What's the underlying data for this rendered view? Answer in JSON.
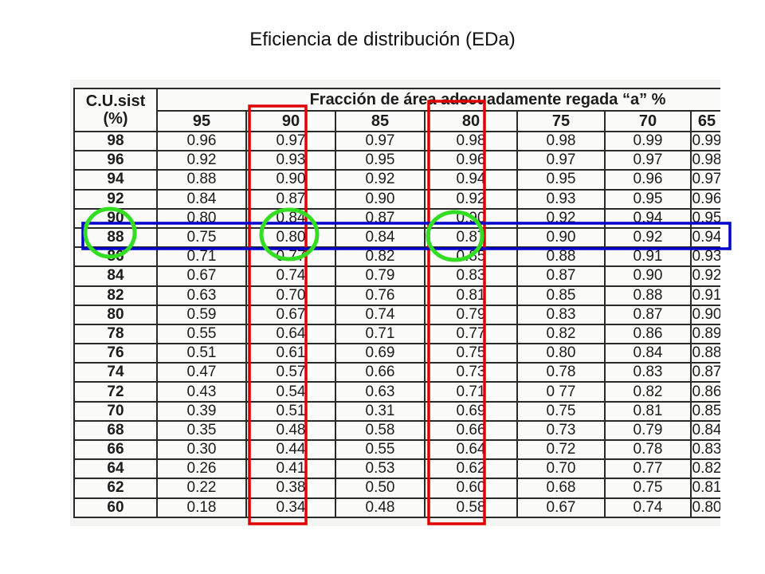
{
  "title": "Eficiencia de distribución (EDa)",
  "table": {
    "cu_header_line1": "C.U.sist",
    "cu_header_line2": "(%)",
    "fraction_header": "Fracción de área  adecuadamente regada “a” %",
    "columns": [
      "95",
      "90",
      "85",
      "80",
      "75",
      "70",
      "65"
    ],
    "rows": [
      {
        "cu": "98",
        "values": [
          "0.96",
          "0.97",
          "0.97",
          "0.98",
          "0.98",
          "0.99",
          "0.99"
        ]
      },
      {
        "cu": "96",
        "values": [
          "0.92",
          "0.93",
          "0.95",
          "0.96",
          "0.97",
          "0.97",
          "0.98"
        ]
      },
      {
        "cu": "94",
        "values": [
          "0.88",
          "0.90",
          "0.92",
          "0.94",
          "0.95",
          "0.96",
          "0.97"
        ]
      },
      {
        "cu": "92",
        "values": [
          "0.84",
          "0.87",
          "0.90",
          "0.92",
          "0.93",
          "0.95",
          "0.96"
        ]
      },
      {
        "cu": "90",
        "values": [
          "0.80",
          "0.84",
          "0.87",
          "0.90",
          "0.92",
          "0.94",
          "0.95"
        ]
      },
      {
        "cu": "88",
        "values": [
          "0.75",
          "0.80",
          "0.84",
          "0.87",
          "0.90",
          "0.92",
          "0.94"
        ]
      },
      {
        "cu": "86",
        "values": [
          "0.71",
          "0.77",
          "0.82",
          "0.85",
          "0.88",
          "0.91",
          "0.93"
        ]
      },
      {
        "cu": "84",
        "values": [
          "0.67",
          "0.74",
          "0.79",
          "0.83",
          "0.87",
          "0.90",
          "0.92"
        ]
      },
      {
        "cu": "82",
        "values": [
          "0.63",
          "0.70",
          "0.76",
          "0.81",
          "0.85",
          "0.88",
          "0.91"
        ]
      },
      {
        "cu": "80",
        "values": [
          "0.59",
          "0.67",
          "0.74",
          "0.79",
          "0.83",
          "0.87",
          "0.90"
        ]
      },
      {
        "cu": "78",
        "values": [
          "0.55",
          "0.64",
          "0.71",
          "0.77",
          "0.82",
          "0.86",
          "0.89"
        ]
      },
      {
        "cu": "76",
        "values": [
          "0.51",
          "0.61",
          "0.69",
          "0.75",
          "0.80",
          "0.84",
          "0.88"
        ]
      },
      {
        "cu": "74",
        "values": [
          "0.47",
          "0.57",
          "0.66",
          "0.73",
          "0.78",
          "0.83",
          "0.87"
        ]
      },
      {
        "cu": "72",
        "values": [
          "0.43",
          "0.54",
          "0.63",
          "0.71",
          "0 77",
          "0.82",
          "0.86"
        ]
      },
      {
        "cu": "70",
        "values": [
          "0.39",
          "0.51",
          "0.31",
          "0.69",
          "0.75",
          "0.81",
          "0.85"
        ]
      },
      {
        "cu": "68",
        "values": [
          "0.35",
          "0.48",
          "0.58",
          "0.66",
          "0.73",
          "0.79",
          "0.84"
        ]
      },
      {
        "cu": "66",
        "values": [
          "0.30",
          "0.44",
          "0.55",
          "0.64",
          "0.72",
          "0.78",
          "0.83"
        ]
      },
      {
        "cu": "64",
        "values": [
          "0.26",
          "0.41",
          "0.53",
          "0.62",
          "0.70",
          "0.77",
          "0.82"
        ]
      },
      {
        "cu": "62",
        "values": [
          "0.22",
          "0.38",
          "0.50",
          "0.60",
          "0.68",
          "0.75",
          "0.81"
        ]
      },
      {
        "cu": "60",
        "values": [
          "0.18",
          "0.34",
          "0.48",
          "0.58",
          "0.67",
          "0.74",
          "0.80"
        ]
      }
    ]
  },
  "annotations": {
    "column_box_color": "#e00000",
    "row_box_color": "#0000cc",
    "circle_color": "#33dd22"
  }
}
